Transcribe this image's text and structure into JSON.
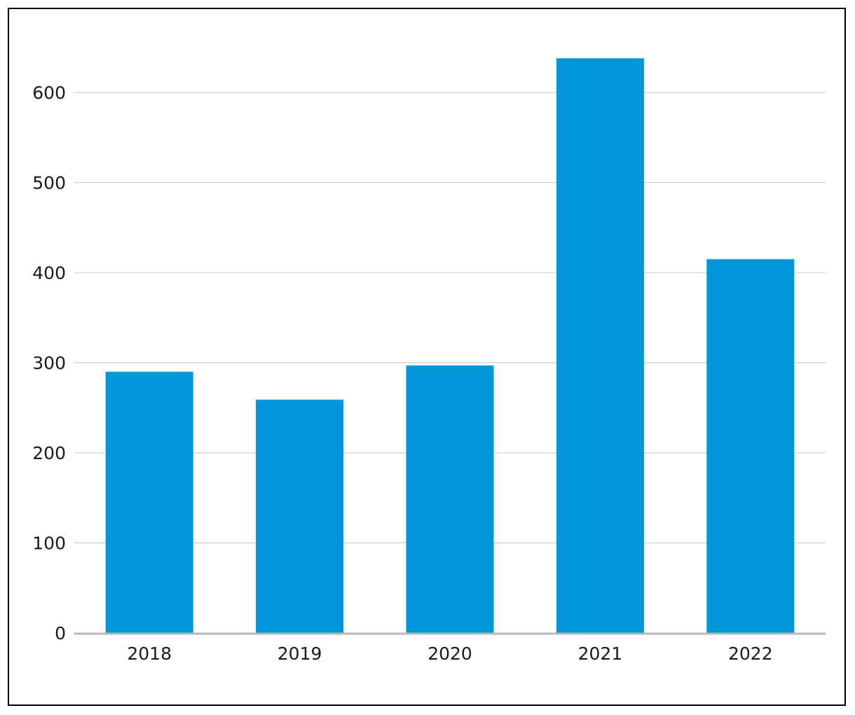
{
  "chart_data": {
    "type": "bar",
    "title": "",
    "xlabel": "",
    "ylabel": "",
    "categories": [
      "2018",
      "2019",
      "2020",
      "2021",
      "2022"
    ],
    "values": [
      290,
      259,
      297,
      638,
      415
    ],
    "ylim": [
      0,
      640
    ],
    "yticks": [
      "0",
      "100",
      "200",
      "300",
      "400",
      "500",
      "600"
    ],
    "grid": true,
    "legend": "none",
    "colors": {
      "bar": "#0096DA",
      "grid": "#c8c8c8",
      "axis": "#b8b8b8",
      "text": "#1a1a1a"
    }
  }
}
